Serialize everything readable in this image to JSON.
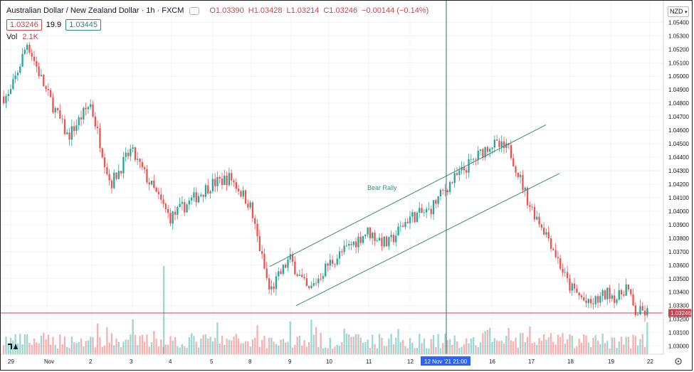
{
  "header": {
    "symbol": "Australian Dollar / New Zealand Dollar · 1h · FXCM",
    "open": "O1.03390",
    "high": "H1.03428",
    "low": "L1.03214",
    "close": "C1.03246",
    "change": "−0.00144 (−0.14%)",
    "bid": "1.03246",
    "spread": "19.9",
    "ask": "1.03445",
    "vol_label": "Vol",
    "vol_value": "2.1K",
    "currency": "NZD"
  },
  "chart_data": {
    "type": "candlestick",
    "title": "Australian Dollar / New Zealand Dollar · 1h · FXCM",
    "ylim": [
      1.0294,
      1.0556
    ],
    "yticks": [
      "1.05400",
      "1.05300",
      "1.05200",
      "1.05100",
      "1.05000",
      "1.04900",
      "1.04800",
      "1.04700",
      "1.04600",
      "1.04500",
      "1.04400",
      "1.04300",
      "1.04200",
      "1.04100",
      "1.04000",
      "1.03900",
      "1.03800",
      "1.03700",
      "1.03600",
      "1.03500",
      "1.03400",
      "1.03300",
      "1.03200",
      "1.03100",
      "1.03000"
    ],
    "xticks": [
      "29",
      "Nov",
      "2",
      "3",
      "4",
      "5",
      "8",
      "9",
      "10",
      "11",
      "12",
      "16",
      "17",
      "18",
      "19",
      "22"
    ],
    "crosshair_label": "12 Nov '21   21:00",
    "last_price": "1.03246",
    "last_price_value": 1.03246,
    "annotation": "Bear Rally",
    "price_path": [
      {
        "x": "29 Oct",
        "y": 1.0485
      },
      {
        "x": "29 Oct",
        "y": 1.0525
      },
      {
        "x": "1 Nov",
        "y": 1.049
      },
      {
        "x": "1 Nov",
        "y": 1.0455
      },
      {
        "x": "2 Nov",
        "y": 1.048
      },
      {
        "x": "2 Nov",
        "y": 1.042
      },
      {
        "x": "3 Nov",
        "y": 1.0445
      },
      {
        "x": "3 Nov",
        "y": 1.042
      },
      {
        "x": "4 Nov",
        "y": 1.0395
      },
      {
        "x": "5 Nov",
        "y": 1.042
      },
      {
        "x": "5 Nov",
        "y": 1.0425
      },
      {
        "x": "8 Nov",
        "y": 1.0405
      },
      {
        "x": "8 Nov",
        "y": 1.034
      },
      {
        "x": "9 Nov",
        "y": 1.0365
      },
      {
        "x": "9 Nov",
        "y": 1.034
      },
      {
        "x": "10 Nov",
        "y": 1.036
      },
      {
        "x": "11 Nov",
        "y": 1.0385
      },
      {
        "x": "11 Nov",
        "y": 1.0375
      },
      {
        "x": "12 Nov",
        "y": 1.0395
      },
      {
        "x": "12 Nov",
        "y": 1.04
      },
      {
        "x": "15 Nov",
        "y": 1.042
      },
      {
        "x": "16 Nov",
        "y": 1.045
      },
      {
        "x": "16 Nov",
        "y": 1.0445
      },
      {
        "x": "17 Nov",
        "y": 1.0405
      },
      {
        "x": "17 Nov",
        "y": 1.038
      },
      {
        "x": "18 Nov",
        "y": 1.0345
      },
      {
        "x": "18 Nov",
        "y": 1.033
      },
      {
        "x": "19 Nov",
        "y": 1.034
      },
      {
        "x": "19 Nov",
        "y": 1.0335
      },
      {
        "x": "19 Nov",
        "y": 1.0345
      },
      {
        "x": "19 Nov",
        "y": 1.0325
      }
    ],
    "channel_lines": [
      {
        "name": "upper",
        "points": [
          {
            "x": "9 Nov",
            "y": 1.0359
          },
          {
            "x": "17 Nov",
            "y": 1.0464
          }
        ]
      },
      {
        "name": "lower",
        "points": [
          {
            "x": "9 Nov",
            "y": 1.033
          },
          {
            "x": "17 Nov",
            "y": 1.0428
          }
        ]
      }
    ],
    "volume_max": 2.1,
    "colors": {
      "up": "#26a69a",
      "down": "#ef5350",
      "channel": "#3d8a7e",
      "price_line": "#c9444d",
      "crosshair": "#2f6b63",
      "crosshair_label_bg": "#2962ff"
    }
  }
}
